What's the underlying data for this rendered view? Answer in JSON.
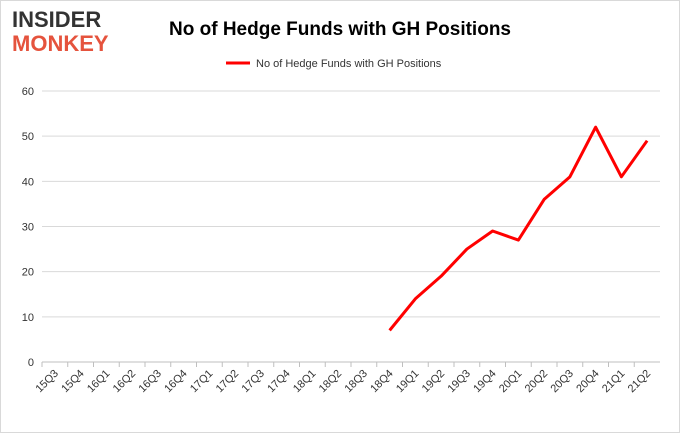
{
  "logo": {
    "line1": "INSIDER",
    "line2": "MONKEY"
  },
  "chart_data": {
    "type": "line",
    "title": "No of Hedge Funds with GH Positions",
    "categories": [
      "15Q3",
      "15Q4",
      "16Q1",
      "16Q2",
      "16Q3",
      "16Q4",
      "17Q1",
      "17Q2",
      "17Q3",
      "17Q4",
      "18Q1",
      "18Q2",
      "18Q3",
      "18Q4",
      "19Q1",
      "19Q2",
      "19Q3",
      "19Q4",
      "20Q1",
      "20Q2",
      "20Q3",
      "20Q4",
      "21Q1",
      "21Q2"
    ],
    "series": [
      {
        "name": "No of Hedge Funds with GH Positions",
        "color": "#ff0000",
        "values": [
          null,
          null,
          null,
          null,
          null,
          null,
          null,
          null,
          null,
          null,
          null,
          null,
          null,
          7,
          14,
          19,
          25,
          29,
          27,
          36,
          41,
          52,
          41,
          49
        ]
      }
    ],
    "ylim": [
      0,
      60
    ],
    "yticks": [
      0,
      10,
      20,
      30,
      40,
      50,
      60
    ],
    "grid": true,
    "legend": "top"
  }
}
